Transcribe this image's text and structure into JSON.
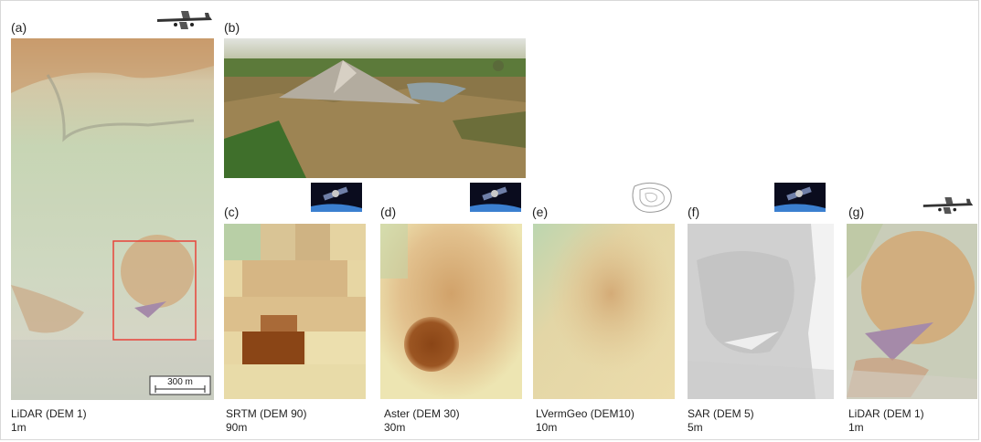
{
  "panels": {
    "a": {
      "label": "(a)",
      "caption_line1": "LiDAR (DEM 1)",
      "caption_line2": "1m",
      "scale_label": "300 m"
    },
    "b": {
      "label": "(b)"
    },
    "c": {
      "label": "(c)",
      "caption_line1": "SRTM (DEM 90)",
      "caption_line2": "90m"
    },
    "d": {
      "label": "(d)",
      "caption_line1": "Aster (DEM 30)",
      "caption_line2": "30m"
    },
    "e": {
      "label": "(e)",
      "caption_line1": "LVermGeo (DEM10)",
      "caption_line2": "10m"
    },
    "f": {
      "label": "(f)",
      "caption_line1": "SAR (DEM 5)",
      "caption_line2": "5m"
    },
    "g": {
      "label": "(g)",
      "caption_line1": "LiDAR (DEM 1)",
      "caption_line2": "1m"
    }
  },
  "icons": {
    "a": "airplane-icon",
    "c": "satellite-icon",
    "d": "satellite-icon",
    "e": "survey-map-icon",
    "f": "satellite-icon",
    "g": "airplane-icon"
  },
  "colors": {
    "highlight_box": "#e8443a",
    "lidar_green": "#c9d6b8",
    "dem_tan": "#d9b27e",
    "dem_dark": "#8a4516",
    "sar_gray": "#cfcfcf"
  }
}
